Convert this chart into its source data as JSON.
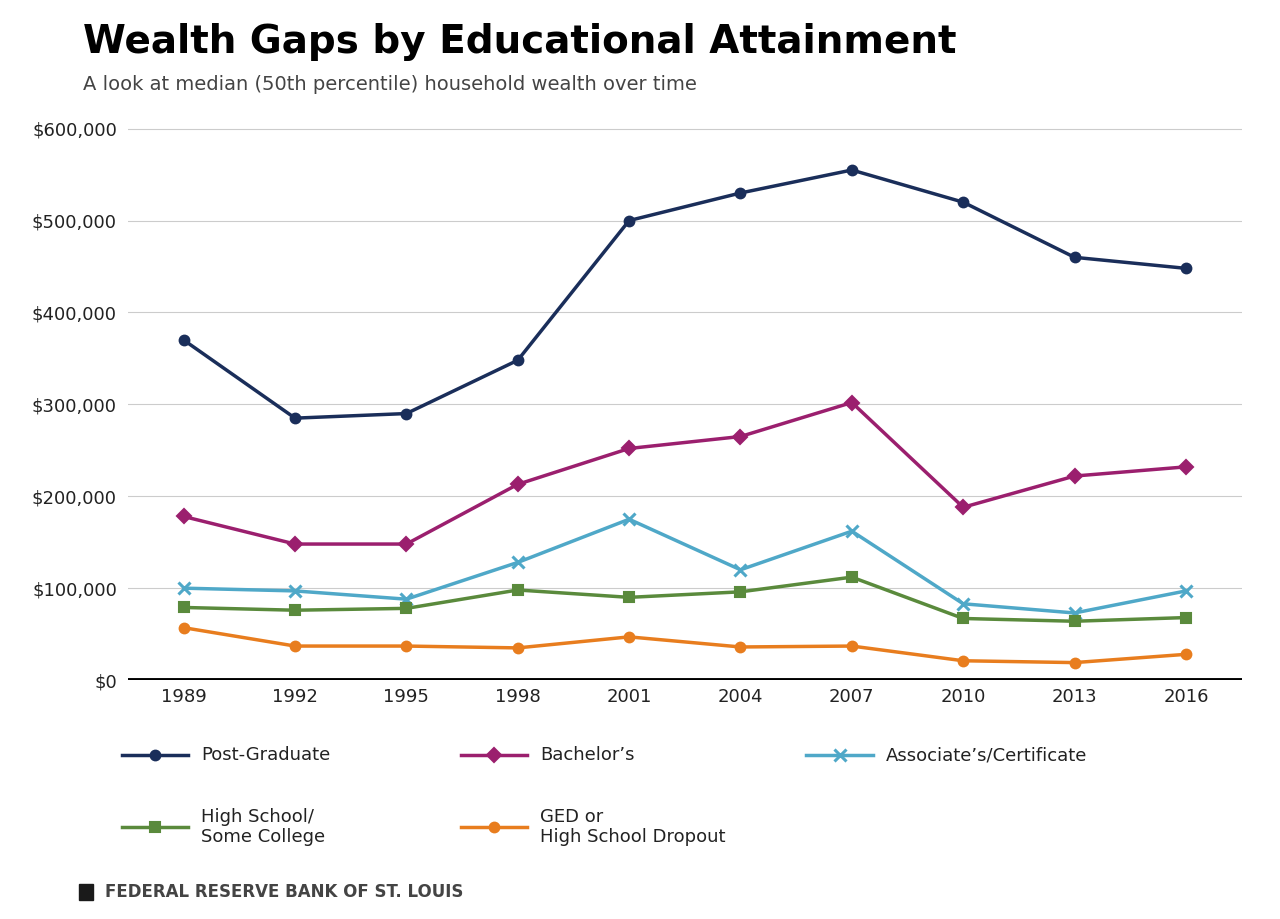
{
  "title": "Wealth Gaps by Educational Attainment",
  "subtitle": "A look at median (50th percentile) household wealth over time",
  "source": "FEDERAL RESERVE BANK OF ST. LOUIS",
  "years": [
    1989,
    1992,
    1995,
    1998,
    2001,
    2004,
    2007,
    2010,
    2013,
    2016
  ],
  "series": {
    "Post-Graduate": {
      "values": [
        370000,
        285000,
        290000,
        348000,
        500000,
        530000,
        555000,
        520000,
        460000,
        448000
      ],
      "color": "#1a2e5a",
      "marker": "o",
      "markersize": 7,
      "linewidth": 2.5,
      "label": "Post-Graduate"
    },
    "Bachelor": {
      "values": [
        178000,
        148000,
        148000,
        213000,
        252000,
        265000,
        302000,
        188000,
        222000,
        232000
      ],
      "color": "#9b1f6e",
      "marker": "D",
      "markersize": 7,
      "linewidth": 2.5,
      "label": "Bachelor’s"
    },
    "Associate": {
      "values": [
        100000,
        97000,
        88000,
        128000,
        175000,
        120000,
        162000,
        83000,
        73000,
        97000
      ],
      "color": "#4fa8c8",
      "marker": "x",
      "markersize": 9,
      "linewidth": 2.5,
      "label": "Associate’s/Certificate"
    },
    "HighSchool": {
      "values": [
        79000,
        76000,
        78000,
        98000,
        90000,
        96000,
        112000,
        67000,
        64000,
        68000
      ],
      "color": "#5a8a3c",
      "marker": "s",
      "markersize": 7,
      "linewidth": 2.5,
      "label": "High School/\nSome College"
    },
    "GED": {
      "values": [
        57000,
        37000,
        37000,
        35000,
        47000,
        36000,
        37000,
        21000,
        19000,
        28000
      ],
      "color": "#e87d1e",
      "marker": "o",
      "markersize": 7,
      "linewidth": 2.5,
      "label": "GED or\nHigh School Dropout"
    }
  },
  "ylim": [
    0,
    620000
  ],
  "yticks": [
    0,
    100000,
    200000,
    300000,
    400000,
    500000,
    600000
  ],
  "background_color": "#ffffff",
  "grid_color": "#cccccc",
  "title_fontsize": 28,
  "subtitle_fontsize": 14,
  "tick_fontsize": 13,
  "legend_fontsize": 13,
  "source_fontsize": 12
}
